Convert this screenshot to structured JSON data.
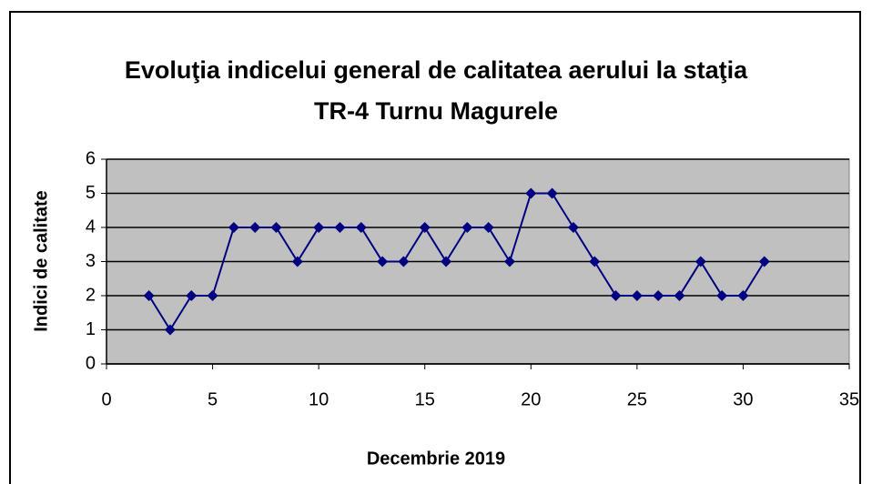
{
  "chart_data": {
    "type": "line",
    "title": "Evoluţia indicelui general de calitatea aerului la staţia TR-4 Turnu Magurele",
    "x_label": "Decembrie 2019",
    "y_label": "Indici de calitate",
    "x": [
      2,
      3,
      4,
      5,
      6,
      7,
      8,
      9,
      10,
      11,
      12,
      13,
      14,
      15,
      16,
      17,
      18,
      19,
      20,
      21,
      22,
      23,
      24,
      25,
      26,
      27,
      28,
      29,
      30,
      31
    ],
    "values": [
      2,
      1,
      2,
      2,
      4,
      4,
      4,
      3,
      4,
      4,
      4,
      3,
      3,
      4,
      3,
      4,
      4,
      3,
      5,
      5,
      4,
      3,
      2,
      2,
      2,
      2,
      3,
      2,
      2,
      3
    ],
    "color": "#000080",
    "xlim": [
      0,
      35
    ],
    "xticks": [
      0,
      5,
      10,
      15,
      20,
      25,
      30,
      35
    ],
    "ylim": [
      0,
      6
    ],
    "yticks": [
      0,
      1,
      2,
      3,
      4,
      5,
      6
    ],
    "grid": true
  }
}
